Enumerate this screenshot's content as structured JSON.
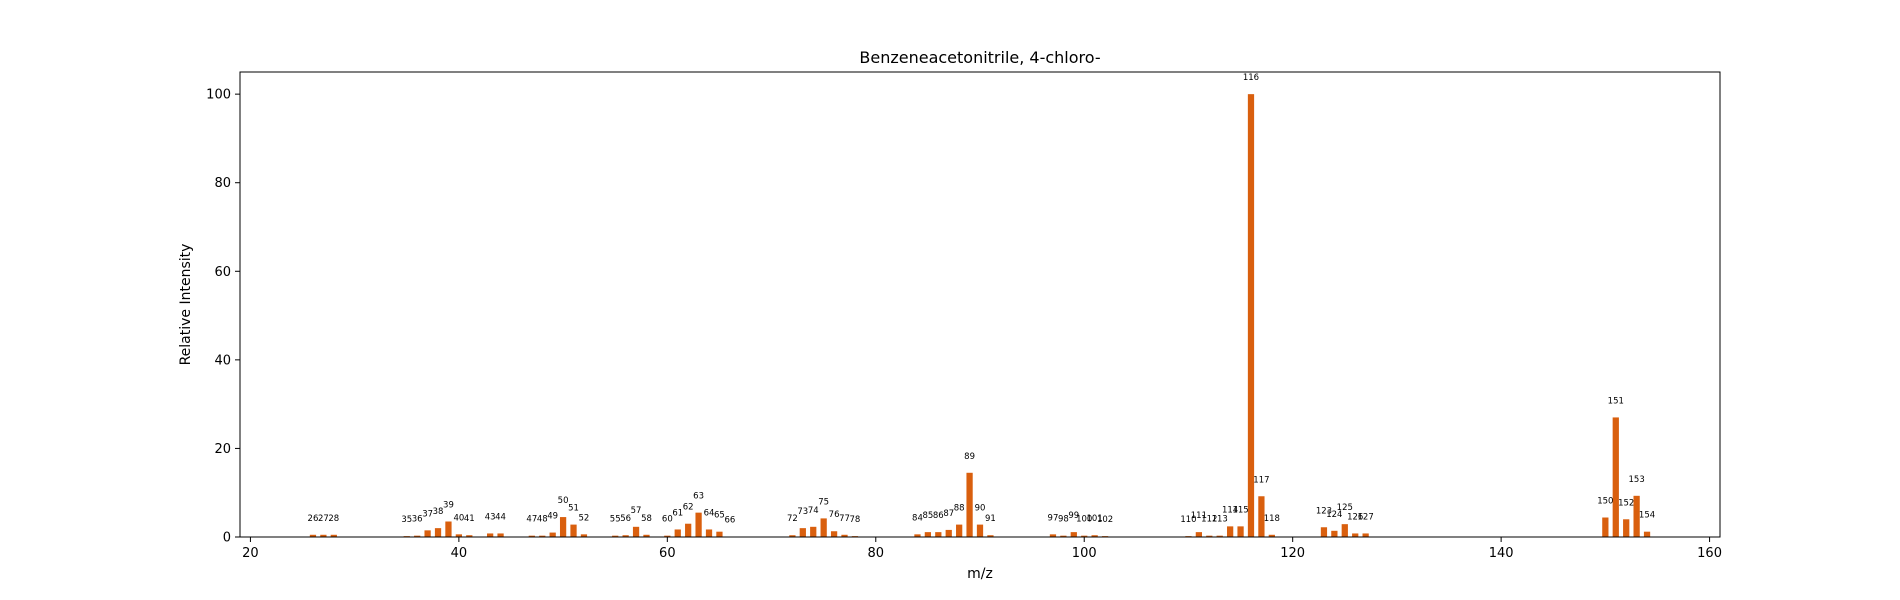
{
  "chart_data": {
    "type": "bar",
    "title": "Benzeneacetonitrile, 4-chloro-",
    "xlabel": "m/z",
    "ylabel": "Relative Intensity",
    "xlim": [
      19,
      161
    ],
    "ylim": [
      0,
      105
    ],
    "xticks": [
      "20",
      "40",
      "60",
      "80",
      "100",
      "120",
      "140",
      "160"
    ],
    "yticks": [
      "0",
      "20",
      "40",
      "60",
      "80",
      "100"
    ],
    "grid": false,
    "legend": "none",
    "bar_color": "#d95f0e",
    "x": [
      26,
      27,
      28,
      35,
      36,
      37,
      38,
      39,
      40,
      41,
      43,
      44,
      47,
      48,
      49,
      50,
      51,
      52,
      55,
      56,
      57,
      58,
      60,
      61,
      62,
      63,
      64,
      65,
      66,
      72,
      73,
      74,
      75,
      76,
      77,
      78,
      84,
      85,
      86,
      87,
      88,
      89,
      90,
      91,
      97,
      98,
      99,
      100,
      101,
      102,
      110,
      111,
      112,
      113,
      114,
      115,
      116,
      117,
      118,
      123,
      124,
      125,
      126,
      127,
      150,
      151,
      152,
      153,
      154
    ],
    "values": [
      0.5,
      0.5,
      0.5,
      0.2,
      0.3,
      1.5,
      2.0,
      3.5,
      0.6,
      0.4,
      0.8,
      0.8,
      0.3,
      0.3,
      1.0,
      4.5,
      2.8,
      0.6,
      0.3,
      0.4,
      2.3,
      0.5,
      0.3,
      1.7,
      3.0,
      5.5,
      1.7,
      1.2,
      0.1,
      0.4,
      2.0,
      2.3,
      4.2,
      1.3,
      0.5,
      0.2,
      0.6,
      1.1,
      1.1,
      1.6,
      2.8,
      14.5,
      2.8,
      0.4,
      0.6,
      0.3,
      1.1,
      0.3,
      0.4,
      0.2,
      0.2,
      1.1,
      0.3,
      0.3,
      2.4,
      2.4,
      100,
      9.2,
      0.5,
      2.2,
      1.4,
      2.9,
      0.8,
      0.8,
      4.4,
      27,
      4.0,
      9.3,
      1.2
    ]
  }
}
